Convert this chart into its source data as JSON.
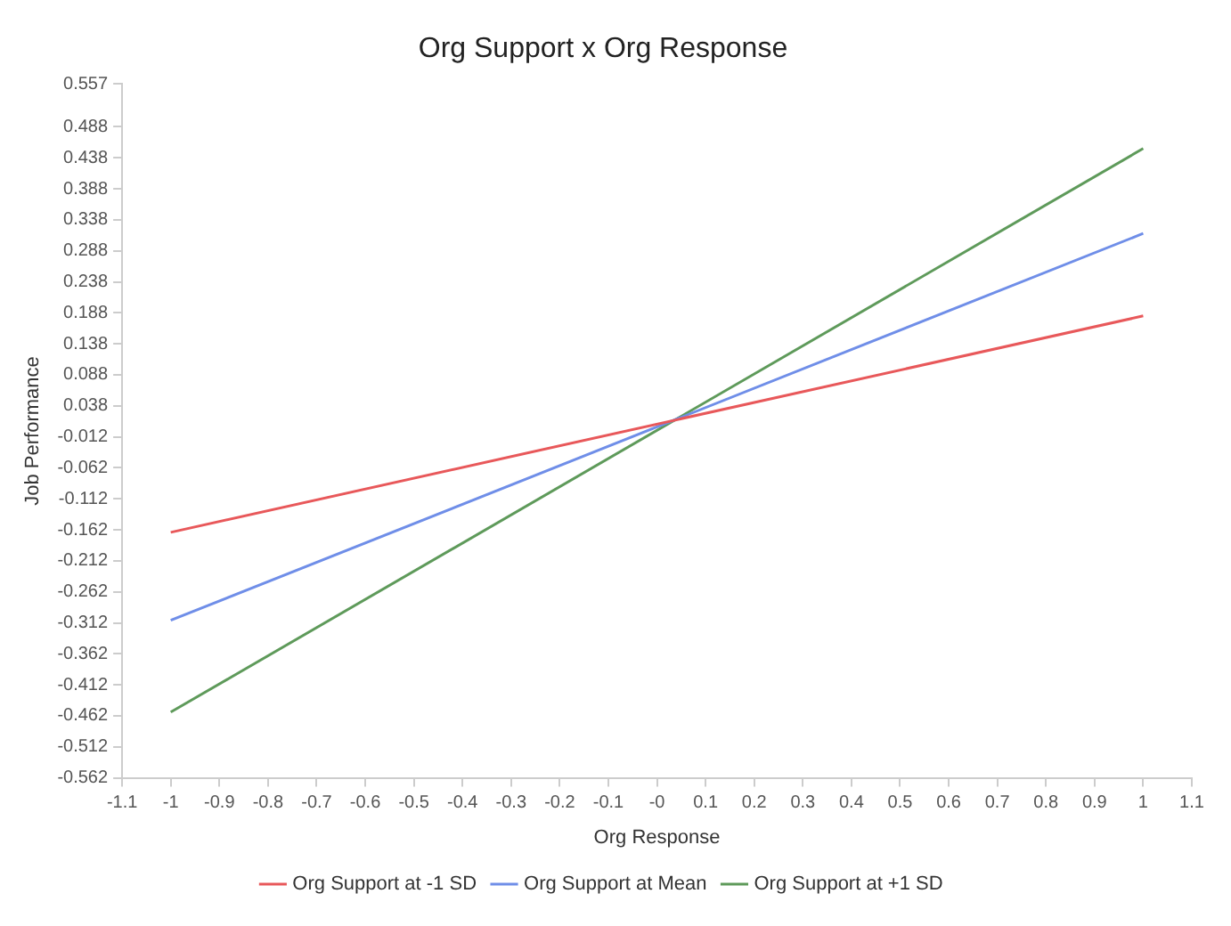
{
  "chart_data": {
    "type": "line",
    "title": "Org Support x Org Response",
    "xlabel": "Org Response",
    "ylabel": "Job Performance",
    "x": [
      -1,
      1
    ],
    "series": [
      {
        "name": "Org Support at -1 SD",
        "color": "#e8585a",
        "values": [
          -0.166,
          0.183
        ]
      },
      {
        "name": "Org Support at Mean",
        "color": "#6f8ee8",
        "values": [
          -0.308,
          0.316
        ]
      },
      {
        "name": "Org Support at +1 SD",
        "color": "#5e9a5a",
        "values": [
          -0.456,
          0.453
        ]
      }
    ],
    "xlim": [
      -1.1,
      1.1
    ],
    "xticks": [
      -1.1,
      -1,
      -0.9,
      -0.8,
      -0.7,
      -0.6,
      -0.5,
      -0.4,
      -0.3,
      -0.2,
      -0.1,
      {
        "value": 0,
        "label": "-0"
      },
      0.1,
      0.2,
      0.3,
      0.4,
      0.5,
      0.6,
      0.7,
      0.8,
      0.9,
      1,
      1.1
    ],
    "ylim": [
      -0.562,
      0.557
    ],
    "yticks": [
      0.557,
      0.488,
      0.438,
      0.388,
      0.338,
      0.288,
      0.238,
      0.188,
      0.138,
      0.088,
      0.038,
      -0.012,
      -0.062,
      -0.112,
      -0.162,
      -0.212,
      -0.262,
      -0.312,
      -0.362,
      -0.412,
      -0.462,
      -0.512,
      -0.562
    ],
    "grid": false,
    "legend": "bottom",
    "marker": "none",
    "line_style": "solid"
  }
}
